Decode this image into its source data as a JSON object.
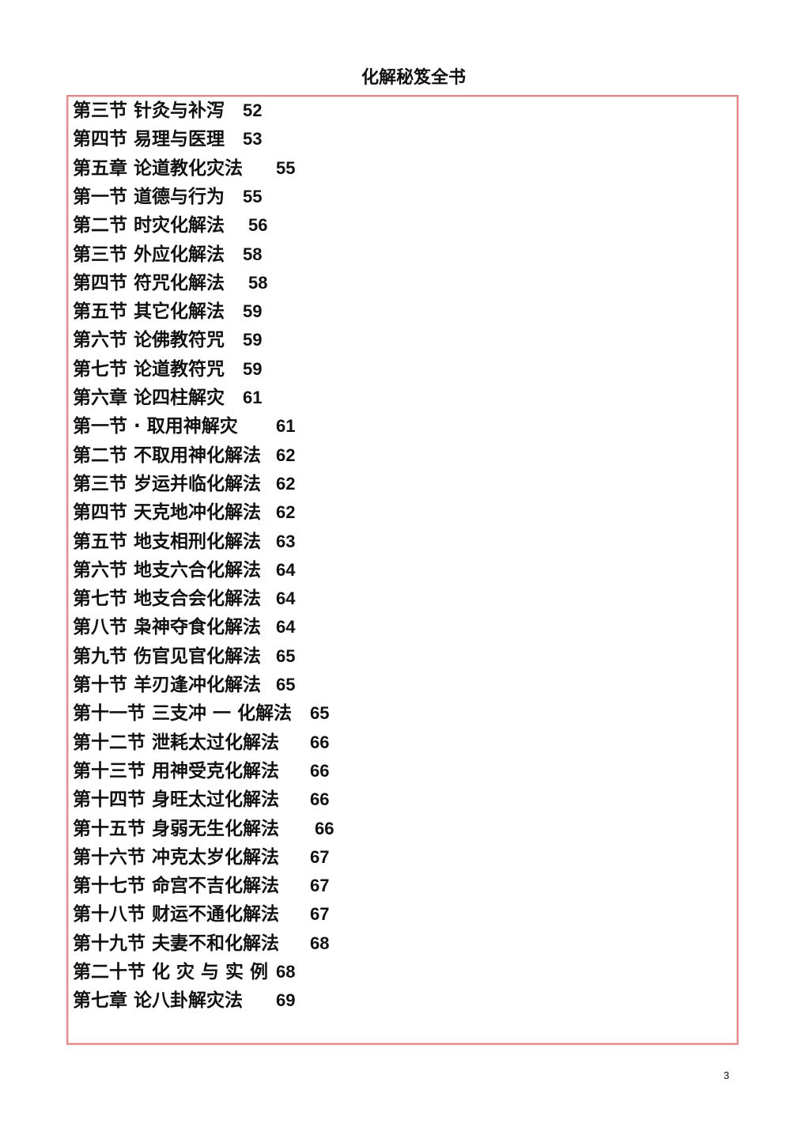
{
  "header": {
    "title": "化解秘笈全书"
  },
  "toc": [
    {
      "title": "第三节 针灸与补泻",
      "page": "52"
    },
    {
      "title": "第四节 易理与医理",
      "page": "53"
    },
    {
      "title": "第五章 论道教化灾法",
      "page": "55"
    },
    {
      "title": "第一节 道德与行为",
      "page": "55"
    },
    {
      "title": "第二节 时灾化解法",
      "page": "56"
    },
    {
      "title": "第三节 外应化解法",
      "page": "58"
    },
    {
      "title": "第四节 符咒化解法",
      "page": "58"
    },
    {
      "title": "第五节 其它化解法",
      "page": "59"
    },
    {
      "title": "第六节 论佛教符咒",
      "page": "59"
    },
    {
      "title": "第七节 论道教符咒",
      "page": "59"
    },
    {
      "title": "第六章 论四柱解灾",
      "page": "61"
    },
    {
      "title": "第一节 · 取用神解灾",
      "page": "61"
    },
    {
      "title": "第二节 不取用神化解法",
      "page": "62"
    },
    {
      "title": "第三节 岁运并临化解法",
      "page": "62"
    },
    {
      "title": "第四节 天克地冲化解法",
      "page": "62"
    },
    {
      "title": "第五节 地支相刑化解法",
      "page": "63"
    },
    {
      "title": "第六节 地支六合化解法",
      "page": "64"
    },
    {
      "title": "第七节 地支合会化解法",
      "page": "64"
    },
    {
      "title": "第八节 枭神夺食化解法",
      "page": "64"
    },
    {
      "title": "第九节 伤官见官化解法",
      "page": "65"
    },
    {
      "title": "第十节 羊刃逢冲化解法",
      "page": "65"
    },
    {
      "title": "第十一节 三支冲 一 化解法",
      "page": "65"
    },
    {
      "title": "第十二节 泄耗太过化解法",
      "page": "66"
    },
    {
      "title": "第十三节 用神受克化解法",
      "page": "66"
    },
    {
      "title": "第十四节 身旺太过化解法",
      "page": "66"
    },
    {
      "title": "第十五节 身弱无生化解法",
      "page": "66"
    },
    {
      "title": "第十六节 冲克太岁化解法",
      "page": "67"
    },
    {
      "title": "第十七节 命宫不吉化解法",
      "page": "67"
    },
    {
      "title": "第十八节 财运不通化解法",
      "page": "67"
    },
    {
      "title": "第十九节 夫妻不和化解法",
      "page": "68"
    },
    {
      "title": "第二十节 化 灾 与 实 例",
      "page": "68"
    },
    {
      "title": "第七章 论八卦解灾法",
      "page": "69"
    }
  ],
  "footer": {
    "page_number": "3"
  },
  "colors": {
    "frame_border": "#e38a8a",
    "text": "#111111"
  }
}
